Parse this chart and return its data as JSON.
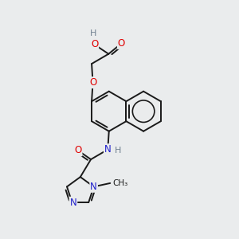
{
  "bg_color": "#eaeced",
  "bond_color": "#1a1a1a",
  "atom_colors": {
    "O": "#e00000",
    "N": "#2020cc",
    "H": "#708090",
    "C": "#1a1a1a"
  },
  "bond_width": 1.4,
  "font_size": 8.5
}
